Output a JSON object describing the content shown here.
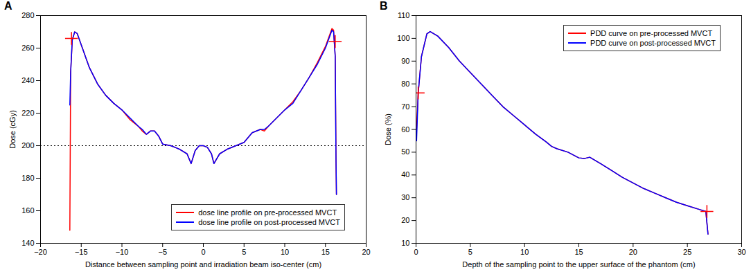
{
  "chart_data": [
    {
      "type": "line",
      "title": "A",
      "xlabel": "Distance between sampling point and irradiation beam iso-center (cm)",
      "ylabel": "Dose (cGy)",
      "xlim": [
        -20,
        20
      ],
      "xticks": [
        -20,
        -15,
        -10,
        -5,
        0,
        5,
        10,
        15,
        20
      ],
      "ylim": [
        140,
        280
      ],
      "yticks": [
        140,
        160,
        180,
        200,
        220,
        240,
        260,
        280
      ],
      "legend": "lower right",
      "x": [
        -16.4,
        -16.3,
        -16.1,
        -15.8,
        -15.5,
        -15,
        -14,
        -13,
        -12,
        -11,
        -10,
        -9,
        -8,
        -7.5,
        -7,
        -6.5,
        -6,
        -5.5,
        -5,
        -4,
        -3,
        -2,
        -1.5,
        -1,
        -0.5,
        0,
        0.5,
        1,
        1.3,
        2,
        3,
        4,
        5,
        5.5,
        6,
        7,
        7.5,
        8,
        9,
        10,
        11,
        12,
        13,
        14,
        15,
        15.8,
        16,
        16.2,
        16.3,
        16.35
      ],
      "series": [
        {
          "name": "dose line profile on pre-processed MVCT",
          "color": "#ff0000",
          "values": [
            148,
            245,
            265,
            270,
            269,
            262,
            248,
            238,
            231,
            226,
            222,
            216,
            212,
            209,
            207,
            209,
            209,
            206,
            201,
            200,
            198,
            195,
            189,
            197,
            200,
            200,
            199,
            195,
            189,
            195,
            198,
            200,
            202,
            205,
            208,
            210,
            209,
            212,
            217,
            222,
            227,
            234,
            242,
            251,
            261,
            272,
            271,
            255,
            190,
            170
          ]
        },
        {
          "name": "dose line profile on post-processed MVCT",
          "color": "#0000ff",
          "values": [
            225,
            245,
            265,
            270,
            269,
            262,
            248,
            238,
            231,
            226,
            222,
            217,
            212,
            210,
            207,
            209,
            209,
            206,
            201,
            200,
            198,
            195,
            189,
            197,
            200,
            200,
            199,
            195,
            189,
            195,
            198,
            200,
            202,
            205,
            208,
            210,
            210,
            212,
            217,
            222,
            226,
            234,
            242,
            250,
            260,
            271,
            270,
            255,
            190,
            170
          ]
        }
      ],
      "hline": {
        "value": 200,
        "color": "#000000",
        "line_style": "dotted"
      },
      "points": {
        "color": "#ff0000",
        "marker": "plus",
        "x": [
          -16.2,
          16.2
        ],
        "y": [
          266,
          264
        ]
      }
    },
    {
      "type": "line",
      "title": "B",
      "xlabel": "Depth of the sampling point to the upper surface of the phantom (cm)",
      "ylabel": "Dose (%)",
      "xlim": [
        0,
        30
      ],
      "xticks": [
        0,
        5,
        10,
        15,
        20,
        25,
        30
      ],
      "ylim": [
        10,
        110
      ],
      "yticks": [
        10,
        20,
        30,
        40,
        50,
        60,
        70,
        80,
        90,
        100,
        110
      ],
      "legend": "upper right",
      "x": [
        0.05,
        0.2,
        0.5,
        1,
        1.3,
        2,
        3,
        4,
        5,
        6,
        7,
        8,
        9,
        10,
        11,
        12,
        12.5,
        13,
        14,
        15,
        15.5,
        16,
        17,
        18,
        19,
        20,
        21,
        22,
        23,
        24,
        25,
        26,
        26.7,
        26.8,
        26.9
      ],
      "series": [
        {
          "name": "PDD curve on pre-processed MVCT",
          "color": "#ff0000",
          "values": [
            60,
            76,
            92,
            102,
            103,
            101,
            96,
            90,
            85,
            80,
            75,
            70,
            66,
            62,
            58,
            54.5,
            52.5,
            51.5,
            50,
            47.5,
            47.2,
            47.8,
            45,
            42,
            39,
            36.5,
            34,
            32,
            30,
            28,
            26.5,
            25,
            24,
            19,
            14
          ]
        },
        {
          "name": "PDD curve on post-processed MVCT",
          "color": "#0000ff",
          "values": [
            55,
            76,
            92,
            102,
            103,
            101,
            96,
            90,
            85,
            80,
            75,
            70,
            66,
            62,
            58,
            54.5,
            52.5,
            51.5,
            50,
            47.5,
            47.2,
            47.8,
            45,
            42,
            39,
            36.5,
            34,
            32,
            30,
            28,
            26.5,
            25,
            24,
            19,
            14
          ]
        }
      ],
      "points": {
        "color": "#ff0000",
        "marker": "plus",
        "x": [
          0.2,
          26.8
        ],
        "y": [
          76,
          24
        ]
      }
    }
  ]
}
